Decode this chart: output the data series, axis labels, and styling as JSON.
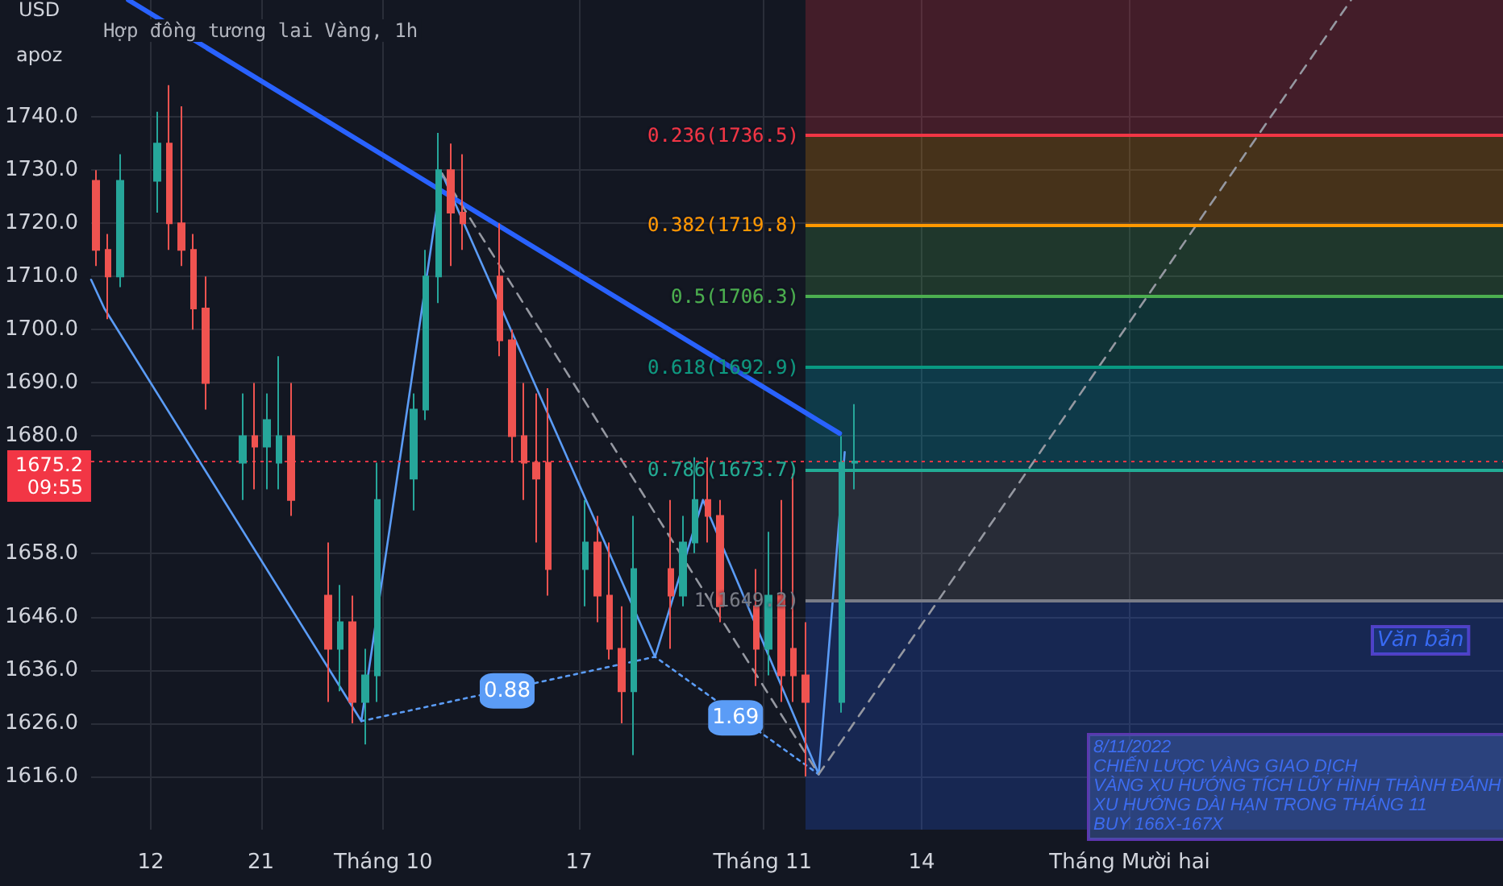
{
  "chart_data": {
    "type": "candlestick",
    "title": "Hợp đồng tương lai Vàng, 1h",
    "ylabel": "USD",
    "xlim": [
      "2022-09-07T03:00",
      "2022-12-31T12:00"
    ],
    "ylim": [
      1606,
      1762
    ],
    "xticks": [
      {
        "value": "2022-09-12",
        "label": "12"
      },
      {
        "value": "2022-09-21",
        "label": "21"
      },
      {
        "value": "2022-10-01",
        "label": "Tháng 10"
      },
      {
        "value": "2022-10-17",
        "label": "17"
      },
      {
        "value": "2022-11-01",
        "label": "Tháng 11"
      },
      {
        "value": "2022-11-14",
        "label": "14"
      },
      {
        "value": "2022-12-01",
        "label": "Tháng Mười hai"
      }
    ],
    "yticks": [
      {
        "value": 1616,
        "label": "1616.0"
      },
      {
        "value": 1626,
        "label": "1626.0"
      },
      {
        "value": 1636,
        "label": "1636.0"
      },
      {
        "value": 1646,
        "label": "1646.0"
      },
      {
        "value": 1658,
        "label": "1658.0"
      },
      {
        "value": 1680,
        "label": "1680.0"
      },
      {
        "value": 1690,
        "label": "1690.0"
      },
      {
        "value": 1700,
        "label": "1700.0"
      },
      {
        "value": 1710,
        "label": "1710.0"
      },
      {
        "value": 1720,
        "label": "1720.0"
      },
      {
        "value": 1730,
        "label": "1730.0"
      },
      {
        "value": 1740,
        "label": "1740.0"
      }
    ],
    "grid": true,
    "x": [
      "2022-09-07T12:00",
      "2022-09-08T12:00",
      "2022-09-09T12:00",
      "2022-09-12T12:00",
      "2022-09-13T12:00",
      "2022-09-14T12:00",
      "2022-09-15T12:00",
      "2022-09-16T12:00",
      "2022-09-19T12:00",
      "2022-09-20T12:00",
      "2022-09-21T12:00",
      "2022-09-22T12:00",
      "2022-09-23T12:00",
      "2022-09-26T12:00",
      "2022-09-27T12:00",
      "2022-09-28T12:00",
      "2022-09-29T12:00",
      "2022-09-30T12:00",
      "2022-10-03T12:00",
      "2022-10-04T12:00",
      "2022-10-05T12:00",
      "2022-10-06T12:00",
      "2022-10-07T12:00",
      "2022-10-10T12:00",
      "2022-10-11T12:00",
      "2022-10-12T12:00",
      "2022-10-13T12:00",
      "2022-10-14T12:00",
      "2022-10-17T12:00",
      "2022-10-18T12:00",
      "2022-10-19T12:00",
      "2022-10-20T12:00",
      "2022-10-21T12:00",
      "2022-10-24T12:00",
      "2022-10-25T12:00",
      "2022-10-26T12:00",
      "2022-10-27T12:00",
      "2022-10-28T12:00",
      "2022-10-31T12:00",
      "2022-11-01T12:00",
      "2022-11-02T12:00",
      "2022-11-03T12:00",
      "2022-11-04T12:00",
      "2022-11-07T12:00",
      "2022-11-08T12:00"
    ],
    "ohlc": [
      [
        1728,
        1730,
        1712,
        1715
      ],
      [
        1715,
        1718,
        1702,
        1710
      ],
      [
        1710,
        1733,
        1708,
        1728
      ],
      [
        1728,
        1741,
        1722,
        1735
      ],
      [
        1735,
        1746,
        1715,
        1720
      ],
      [
        1720,
        1742,
        1712,
        1715
      ],
      [
        1715,
        1718,
        1700,
        1704
      ],
      [
        1704,
        1710,
        1685,
        1690
      ],
      [
        1675,
        1688,
        1668,
        1680
      ],
      [
        1680,
        1690,
        1670,
        1678
      ],
      [
        1678,
        1688,
        1670,
        1683
      ],
      [
        1675,
        1695,
        1670,
        1680
      ],
      [
        1680,
        1690,
        1665,
        1668
      ],
      [
        1650,
        1660,
        1630,
        1640
      ],
      [
        1640,
        1652,
        1632,
        1645
      ],
      [
        1645,
        1650,
        1626,
        1630
      ],
      [
        1630,
        1640,
        1622,
        1635
      ],
      [
        1635,
        1675,
        1630,
        1668
      ],
      [
        1672,
        1688,
        1666,
        1685
      ],
      [
        1685,
        1715,
        1683,
        1710
      ],
      [
        1710,
        1737,
        1705,
        1730
      ],
      [
        1730,
        1735,
        1712,
        1722
      ],
      [
        1722,
        1733,
        1715,
        1720
      ],
      [
        1710,
        1720,
        1695,
        1698
      ],
      [
        1698,
        1700,
        1675,
        1680
      ],
      [
        1680,
        1690,
        1668,
        1675
      ],
      [
        1675,
        1688,
        1660,
        1672
      ],
      [
        1675,
        1689,
        1650,
        1655
      ],
      [
        1655,
        1668,
        1648,
        1660
      ],
      [
        1660,
        1665,
        1645,
        1650
      ],
      [
        1650,
        1660,
        1638,
        1640
      ],
      [
        1640,
        1648,
        1626,
        1632
      ],
      [
        1632,
        1665,
        1620,
        1655
      ],
      [
        1655,
        1668,
        1640,
        1650
      ],
      [
        1650,
        1665,
        1648,
        1660
      ],
      [
        1660,
        1676,
        1658,
        1668
      ],
      [
        1668,
        1676,
        1660,
        1665
      ],
      [
        1665,
        1668,
        1645,
        1648
      ],
      [
        1648,
        1655,
        1633,
        1640
      ],
      [
        1640,
        1662,
        1635,
        1650
      ],
      [
        1650,
        1668,
        1630,
        1635
      ],
      [
        1640,
        1673,
        1630,
        1635
      ],
      [
        1635,
        1645,
        1616,
        1630
      ],
      [
        1630,
        1680,
        1628,
        1675
      ],
      [
        1675,
        1686,
        1670,
        1675.2
      ]
    ],
    "series": [
      {
        "type": "line",
        "color": "#2962ff",
        "line_style": "solid",
        "x": [
          "2022-09-10T04:00",
          "2022-11-07T07:00"
        ],
        "values": [
          1762,
          1680.5
        ]
      },
      {
        "type": "line",
        "color": "#5b9cf6",
        "line_style": "solid",
        "x": [
          "2022-09-07T03:00",
          "2022-09-08T05:00",
          "2022-09-29T05:00",
          "2022-10-05T19:00",
          "2022-10-23T05:00",
          "2022-10-27T03:00",
          "2022-11-05T14:00",
          "2022-11-07T17:00"
        ],
        "values": [
          1709.4,
          1704,
          1626.4,
          1729.4,
          1638.5,
          1668,
          1616.4,
          1677
        ]
      },
      {
        "type": "line",
        "color": "#5b9cf6",
        "line_style": "dotted",
        "x": [
          "2022-09-29T05:00",
          "2022-10-23T05:00",
          "2022-11-05T14:00"
        ],
        "values": [
          1626.4,
          1638.5,
          1616.4
        ]
      },
      {
        "type": "line",
        "color": "#9598a1",
        "line_style": "dashed",
        "x": [
          "2022-10-05T19:00",
          "2022-11-05T14:00",
          "2022-12-19T02:00"
        ],
        "values": [
          1729.4,
          1616.4,
          1762
        ]
      }
    ],
    "ref_lines": [
      {
        "axis": "y",
        "value": 1675.2,
        "label": "1675.2\n09:55",
        "color": "#f23645",
        "line_style": "dotted"
      },
      {
        "axis": "y",
        "value": 1736.5,
        "label": "0.236(1736.5)",
        "color": "#f23645"
      },
      {
        "axis": "y",
        "value": 1719.8,
        "label": "0.382(1719.8)",
        "color": "#ff9800"
      },
      {
        "axis": "y",
        "value": 1706.3,
        "label": "0.5(1706.3)",
        "color": "#4caf50"
      },
      {
        "axis": "y",
        "value": 1692.9,
        "label": "0.618(1692.9)",
        "color": "#089981"
      },
      {
        "axis": "y",
        "value": 1673.7,
        "label": "0.786(1673.7)",
        "color": "#22ab94"
      },
      {
        "axis": "y",
        "value": 1649.2,
        "label": "1(1649.2)",
        "color": "#787b86"
      }
    ],
    "bands": [
      {
        "axis": "y",
        "from": 1736.5,
        "to": 1762,
        "color": "#f23645"
      },
      {
        "axis": "y",
        "from": 1719.8,
        "to": 1736.5,
        "color": "#ff9800"
      },
      {
        "axis": "y",
        "from": 1706.3,
        "to": 1719.8,
        "color": "#4caf50"
      },
      {
        "axis": "y",
        "from": 1692.9,
        "to": 1706.3,
        "color": "#089981"
      },
      {
        "axis": "y",
        "from": 1673.7,
        "to": 1692.9,
        "color": "#00bcd4"
      },
      {
        "axis": "y",
        "from": 1649.2,
        "to": 1673.7,
        "color": "#787b86"
      },
      {
        "axis": "y",
        "from": 1606,
        "to": 1649.2,
        "color": "#2962ff"
      }
    ],
    "annotations": [
      "apoz",
      "Văn bản",
      "8/11/2022\nCHIẾN LƯỢC VÀNG GIAO DỊCH\nVÀNG XU HƯỚNG TÍCH LŨY HÌNH THÀNH ĐÁNH\nXU HƯỚNG DÀI HẠN TRONG THÁNG 11\nBUY 166X-167X",
      {
        "text": "0.88",
        "x": "2022-10-11T03:00",
        "y": 1632.1
      },
      {
        "text": "1.69",
        "x": "2022-10-29T19:00",
        "y": 1627
      }
    ]
  }
}
